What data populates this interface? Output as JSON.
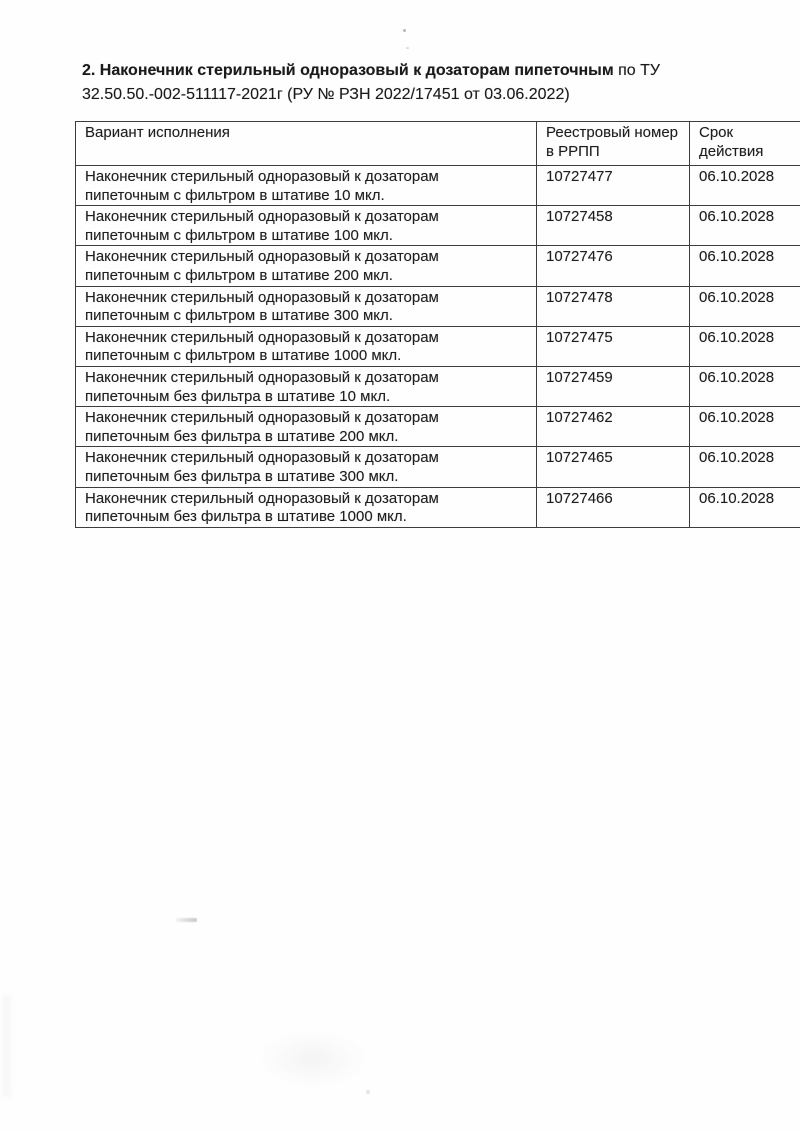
{
  "page": {
    "section_title": {
      "bold": "2. Наконечник стерильный одноразовый к дозаторам пипеточным",
      "regular": " по ТУ",
      "line2": "32.50.50.-002-511117-2021г (РУ № РЗН 2022/17451 от 03.06.2022)"
    },
    "table": {
      "headers": {
        "variant": "Вариант исполнения",
        "number": "Реестровый номер в РРПП",
        "expiry": "Срок действия"
      },
      "rows": [
        {
          "variant": "Наконечник стерильный одноразовый к дозаторам пипеточным с фильтром в штативе 10 мкл.",
          "number": "10727477",
          "expiry": "06.10.2028"
        },
        {
          "variant": "Наконечник стерильный одноразовый к дозаторам пипеточным с фильтром в штативе 100 мкл.",
          "number": "10727458",
          "expiry": "06.10.2028"
        },
        {
          "variant": "Наконечник стерильный одноразовый к дозаторам пипеточным с фильтром в штативе 200 мкл.",
          "number": "10727476",
          "expiry": "06.10.2028"
        },
        {
          "variant": "Наконечник стерильный одноразовый к дозаторам пипеточным с фильтром в штативе 300 мкл.",
          "number": "10727478",
          "expiry": "06.10.2028"
        },
        {
          "variant": "Наконечник стерильный одноразовый к дозаторам пипеточным с фильтром в штативе 1000 мкл.",
          "number": "10727475",
          "expiry": "06.10.2028"
        },
        {
          "variant": "Наконечник стерильный одноразовый к дозаторам пипеточным без фильтра в штативе 10 мкл.",
          "number": "10727459",
          "expiry": "06.10.2028"
        },
        {
          "variant": "Наконечник стерильный одноразовый к дозаторам пипеточным без фильтра в штативе 200 мкл.",
          "number": "10727462",
          "expiry": "06.10.2028"
        },
        {
          "variant": "Наконечник стерильный одноразовый к дозаторам пипеточным без фильтра в штативе 300 мкл.",
          "number": "10727465",
          "expiry": "06.10.2028"
        },
        {
          "variant": "Наконечник стерильный одноразовый к дозаторам пипеточным без фильтра в штативе 1000 мкл.",
          "number": "10727466",
          "expiry": "06.10.2028"
        }
      ]
    }
  }
}
